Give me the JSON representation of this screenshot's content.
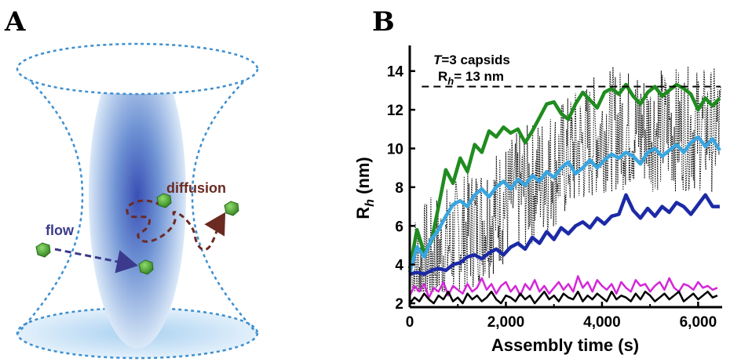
{
  "panels": {
    "a_letter": "A",
    "b_letter": "B"
  },
  "schematic": {
    "flow_label": "flow",
    "diffusion_label": "diffusion",
    "colors": {
      "dashed_outline": "#3d8fd0",
      "focal_volume": "#6f93d4",
      "particle": "#3f9a2c",
      "flow_arrow": "#3b3a8c",
      "diffusion_path": "#6b2a22"
    }
  },
  "chart_data": {
    "type": "line",
    "xlabel": "Assembly time (s)",
    "ylabel_main": "R",
    "ylabel_sub": "h",
    "ylabel_unit": " (nm)",
    "xlim": [
      0,
      6500
    ],
    "ylim": [
      1.8,
      15
    ],
    "x_ticks": [
      0,
      2000,
      4000,
      6000
    ],
    "x_tick_labels": [
      "0",
      "2,000",
      "4,000",
      "6,000"
    ],
    "y_ticks": [
      2,
      4,
      6,
      8,
      10,
      12,
      14
    ],
    "y_tick_labels": [
      "2",
      "4",
      "6",
      "8",
      "10",
      "12",
      "14"
    ],
    "annotation": {
      "line1_italic": "T",
      "line1_rest": "=3 capsids",
      "line2_main": "R",
      "line2_sub": "h",
      "line2_rest": "= 13 nm",
      "reference_y": 13.2,
      "reference_x_start": 250
    },
    "series": [
      {
        "color": "#1f8c1f",
        "x": [
          0,
          150,
          300,
          450,
          600,
          750,
          900,
          1050,
          1200,
          1350,
          1500,
          1650,
          1800,
          1950,
          2100,
          2250,
          2400,
          2550,
          2700,
          2850,
          3000,
          3150,
          3300,
          3450,
          3600,
          3750,
          3900,
          4050,
          4200,
          4350,
          4500,
          4650,
          4800,
          4950,
          5100,
          5250,
          5400,
          5550,
          5700,
          5850,
          6000,
          6150,
          6300,
          6450
        ],
        "y": [
          3.8,
          5.8,
          4.6,
          5.2,
          7.0,
          8.9,
          8.2,
          9.5,
          8.8,
          10.2,
          9.8,
          10.9,
          10.6,
          11.1,
          10.8,
          11.0,
          10.3,
          10.9,
          11.6,
          12.3,
          12.4,
          11.8,
          11.5,
          12.3,
          12.9,
          12.5,
          12.1,
          12.9,
          13.1,
          12.8,
          13.3,
          12.7,
          12.3,
          12.9,
          13.2,
          12.7,
          13.0,
          13.3,
          13.1,
          12.8,
          12.0,
          12.6,
          12.2,
          12.6
        ]
      },
      {
        "color": "#39a6e0",
        "x": [
          0,
          150,
          300,
          450,
          600,
          750,
          900,
          1050,
          1200,
          1350,
          1500,
          1650,
          1800,
          1950,
          2100,
          2250,
          2400,
          2550,
          2700,
          2850,
          3000,
          3150,
          3300,
          3450,
          3600,
          3750,
          3900,
          4050,
          4200,
          4350,
          4500,
          4650,
          4800,
          4950,
          5100,
          5250,
          5400,
          5550,
          5700,
          5850,
          6000,
          6150,
          6300,
          6450
        ],
        "y": [
          3.6,
          4.9,
          4.4,
          5.3,
          5.8,
          6.5,
          7.1,
          7.3,
          7.0,
          7.6,
          7.9,
          7.5,
          8.0,
          8.3,
          7.9,
          8.4,
          8.1,
          8.6,
          8.3,
          8.8,
          8.5,
          9.0,
          9.3,
          8.7,
          9.0,
          9.4,
          9.0,
          9.4,
          9.7,
          9.5,
          9.8,
          9.6,
          9.2,
          9.8,
          10.0,
          9.6,
          9.9,
          10.2,
          9.8,
          10.3,
          10.6,
          10.1,
          10.5,
          9.9
        ]
      },
      {
        "color": "#1c2aa6",
        "x": [
          0,
          150,
          300,
          450,
          600,
          750,
          900,
          1050,
          1200,
          1350,
          1500,
          1650,
          1800,
          1950,
          2100,
          2250,
          2400,
          2550,
          2700,
          2850,
          3000,
          3150,
          3300,
          3450,
          3600,
          3750,
          3900,
          4050,
          4200,
          4350,
          4500,
          4650,
          4800,
          4950,
          5100,
          5250,
          5400,
          5550,
          5700,
          5850,
          6000,
          6150,
          6300,
          6450
        ],
        "y": [
          3.5,
          3.6,
          3.5,
          3.7,
          3.8,
          3.7,
          4.0,
          4.1,
          4.4,
          4.5,
          4.3,
          4.6,
          4.8,
          4.5,
          4.9,
          5.1,
          4.8,
          5.4,
          5.1,
          5.7,
          5.3,
          5.9,
          5.6,
          6.0,
          6.2,
          5.9,
          6.4,
          6.1,
          6.5,
          6.6,
          7.6,
          6.8,
          6.4,
          6.9,
          6.5,
          7.0,
          6.7,
          7.2,
          7.0,
          6.6,
          7.1,
          7.6,
          7.0,
          7.0
        ]
      },
      {
        "color": "#d327d8",
        "x": [
          0,
          100,
          200,
          300,
          400,
          500,
          600,
          700,
          800,
          900,
          1000,
          1100,
          1200,
          1300,
          1400,
          1500,
          1600,
          1700,
          1800,
          1900,
          2000,
          2100,
          2200,
          2300,
          2400,
          2500,
          2600,
          2700,
          2800,
          2900,
          3000,
          3100,
          3200,
          3300,
          3400,
          3500,
          3600,
          3700,
          3800,
          3900,
          4000,
          4100,
          4200,
          4300,
          4400,
          4500,
          4600,
          4700,
          4800,
          4900,
          5000,
          5100,
          5200,
          5300,
          5400,
          5500,
          5600,
          5700,
          5800,
          5900,
          6000,
          6100,
          6200,
          6300,
          6400
        ],
        "y": [
          2.4,
          2.9,
          2.6,
          3.0,
          2.3,
          2.8,
          2.6,
          3.1,
          2.4,
          2.9,
          2.7,
          2.5,
          3.0,
          2.6,
          2.8,
          3.3,
          2.7,
          3.0,
          2.5,
          2.9,
          3.1,
          2.6,
          2.9,
          2.4,
          3.0,
          2.7,
          3.2,
          2.6,
          2.9,
          2.5,
          2.8,
          3.1,
          2.7,
          3.0,
          2.6,
          3.4,
          2.8,
          3.1,
          2.6,
          3.2,
          2.9,
          2.7,
          3.0,
          2.5,
          3.1,
          2.8,
          2.6,
          3.2,
          2.9,
          3.0,
          2.6,
          2.9,
          3.1,
          2.7,
          3.3,
          2.8,
          2.6,
          3.0,
          2.9,
          2.7,
          3.1,
          2.8,
          2.9,
          2.7,
          2.8
        ]
      },
      {
        "color": "#000000",
        "x": [
          0,
          100,
          200,
          300,
          400,
          500,
          600,
          700,
          800,
          900,
          1000,
          1100,
          1200,
          1300,
          1400,
          1500,
          1600,
          1700,
          1800,
          1900,
          2000,
          2100,
          2200,
          2300,
          2400,
          2500,
          2600,
          2700,
          2800,
          2900,
          3000,
          3100,
          3200,
          3300,
          3400,
          3500,
          3600,
          3700,
          3800,
          3900,
          4000,
          4100,
          4200,
          4300,
          4400,
          4500,
          4600,
          4700,
          4800,
          4900,
          5000,
          5100,
          5200,
          5300,
          5400,
          5500,
          5600,
          5700,
          5800,
          5900,
          6000,
          6100,
          6200,
          6300,
          6400
        ],
        "y": [
          2.0,
          2.3,
          2.1,
          2.5,
          2.2,
          2.0,
          2.4,
          2.2,
          2.6,
          2.1,
          2.3,
          2.0,
          2.5,
          2.2,
          2.4,
          2.1,
          2.3,
          2.6,
          2.2,
          2.0,
          2.4,
          2.3,
          2.1,
          2.5,
          2.2,
          2.4,
          2.0,
          2.3,
          2.6,
          2.2,
          2.4,
          2.1,
          2.5,
          2.3,
          2.2,
          2.6,
          2.1,
          2.4,
          2.2,
          2.5,
          2.3,
          2.1,
          2.6,
          2.2,
          2.4,
          2.3,
          2.1,
          2.5,
          2.2,
          2.6,
          2.4,
          2.1,
          2.3,
          2.5,
          2.2,
          2.4,
          2.6,
          2.1,
          2.3,
          2.5,
          2.2,
          2.4,
          2.6,
          2.3,
          2.4
        ]
      }
    ],
    "raw_trace": {
      "color": "#000000",
      "style": "dotted"
    }
  }
}
